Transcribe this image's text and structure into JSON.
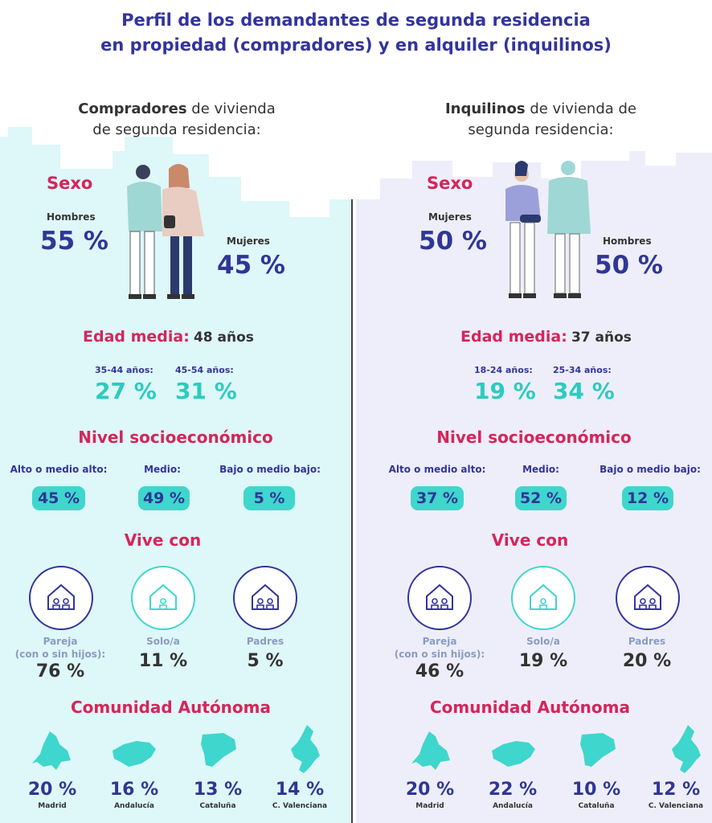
{
  "title": {
    "line1": "Perfil de los demandantes de segunda residencia",
    "line2": "en propiedad (compradores) y en alquiler (inquilinos)"
  },
  "colors": {
    "title_blue": "#33349c",
    "section_pink": "#d4265a",
    "teal": "#2ccbc0",
    "pill_teal": "#3fd6cd",
    "left_bg": "#def7f8",
    "right_bg": "#eeeefa"
  },
  "left": {
    "heading_bold": "Compradores",
    "heading_rest1": " de vivienda",
    "heading_line2": "de segunda residencia:",
    "sexo": {
      "title": "Sexo",
      "a_label": "Hombres",
      "a_value": "55 %",
      "b_label": "Mujeres",
      "b_value": "45 %"
    },
    "edad": {
      "title": "Edad media:",
      "value": "48 años",
      "g1_label": "35-44 años:",
      "g1_value": "27 %",
      "g2_label": "45-54 años:",
      "g2_value": "31 %"
    },
    "nivel": {
      "title": "Nivel socioeconómico",
      "items": [
        {
          "label": "Alto o medio alto:",
          "value": "45 %"
        },
        {
          "label": "Medio:",
          "value": "49 %"
        },
        {
          "label": "Bajo o medio bajo:",
          "value": "5 %"
        }
      ]
    },
    "vive": {
      "title": "Vive con",
      "items": [
        {
          "label1": "Pareja",
          "label2": "(con o sin hijos):",
          "value": "76 %",
          "icon": "house-couple-icon"
        },
        {
          "label1": "Solo/a",
          "label2": "",
          "value": "11 %",
          "icon": "house-single-icon"
        },
        {
          "label1": "Padres",
          "label2": "",
          "value": "5 %",
          "icon": "house-parents-icon"
        }
      ]
    },
    "comunidad": {
      "title": "Comunidad Autónoma",
      "items": [
        {
          "value": "20 %",
          "label": "Madrid",
          "icon": "madrid-map-icon"
        },
        {
          "value": "16 %",
          "label": "Andalucía",
          "icon": "andalucia-map-icon"
        },
        {
          "value": "13 %",
          "label": "Cataluña",
          "icon": "cataluna-map-icon"
        },
        {
          "value": "14 %",
          "label": "C. Valenciana",
          "icon": "valenciana-map-icon"
        }
      ]
    }
  },
  "right": {
    "heading_bold": "Inquilinos",
    "heading_rest1": " de vivienda de",
    "heading_line2": "segunda residencia:",
    "sexo": {
      "title": "Sexo",
      "a_label": "Mujeres",
      "a_value": "50 %",
      "b_label": "Hombres",
      "b_value": "50 %"
    },
    "edad": {
      "title": "Edad media:",
      "value": "37 años",
      "g1_label": "18-24 años:",
      "g1_value": "19 %",
      "g2_label": "25-34 años:",
      "g2_value": "34 %"
    },
    "nivel": {
      "title": "Nivel socioeconómico",
      "items": [
        {
          "label": "Alto o medio alto:",
          "value": "37 %"
        },
        {
          "label": "Medio:",
          "value": "52 %"
        },
        {
          "label": "Bajo o medio bajo:",
          "value": "12 %"
        }
      ]
    },
    "vive": {
      "title": "Vive con",
      "items": [
        {
          "label1": "Pareja",
          "label2": "(con o sin hijos):",
          "value": "46 %",
          "icon": "house-couple-icon"
        },
        {
          "label1": "Solo/a",
          "label2": "",
          "value": "19 %",
          "icon": "house-single-icon"
        },
        {
          "label1": "Padres",
          "label2": "",
          "value": "20 %",
          "icon": "house-parents-icon"
        }
      ]
    },
    "comunidad": {
      "title": "Comunidad Autónoma",
      "items": [
        {
          "value": "20 %",
          "label": "Madrid",
          "icon": "madrid-map-icon"
        },
        {
          "value": "22 %",
          "label": "Andalucía",
          "icon": "andalucia-map-icon"
        },
        {
          "value": "10 %",
          "label": "Cataluña",
          "icon": "cataluna-map-icon"
        },
        {
          "value": "12 %",
          "label": "C. Valenciana",
          "icon": "valenciana-map-icon"
        }
      ]
    }
  }
}
